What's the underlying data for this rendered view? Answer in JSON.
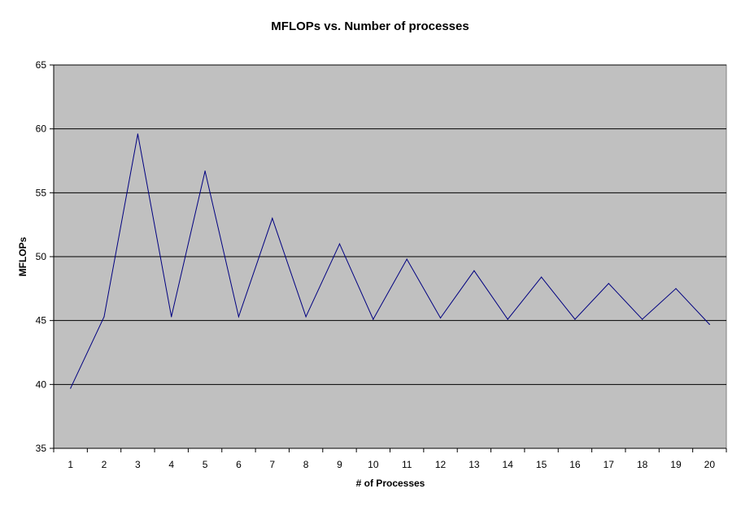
{
  "chart_data": {
    "type": "line",
    "title": "MFLOPs vs. Number of processes",
    "xlabel": "# of Processes",
    "ylabel": "MFLOPs",
    "categories": [
      "1",
      "2",
      "3",
      "4",
      "5",
      "6",
      "7",
      "8",
      "9",
      "10",
      "11",
      "12",
      "13",
      "14",
      "15",
      "16",
      "17",
      "18",
      "19",
      "20"
    ],
    "ylim": [
      35,
      65
    ],
    "yticks": [
      35,
      40,
      45,
      50,
      55,
      60,
      65
    ],
    "grid": true,
    "legend": "none",
    "series": [
      {
        "color": "#000080",
        "values": [
          39.7,
          45.3,
          59.6,
          45.3,
          56.7,
          45.3,
          53.0,
          45.3,
          51.0,
          45.1,
          49.8,
          45.2,
          48.9,
          45.1,
          48.4,
          45.1,
          47.9,
          45.1,
          47.5,
          44.7
        ]
      }
    ],
    "colors": {
      "plot_background": "#c0c0c0",
      "gridline": "#000000",
      "axis": "#000000",
      "line": "#000080"
    }
  }
}
